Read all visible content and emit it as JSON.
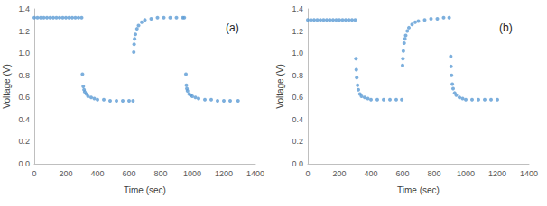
{
  "chart_data": [
    {
      "type": "scatter",
      "annotation": "(a)",
      "x_label": "Time (sec)",
      "y_label": "Voltage (V)",
      "color": "#5b9bd5",
      "marker": "circle",
      "grid": false,
      "xlim": [
        0,
        1400
      ],
      "xticks": [
        0,
        200,
        400,
        600,
        800,
        1000,
        1200,
        1400
      ],
      "ylim": [
        0,
        1.4
      ],
      "yticks": [
        {
          "value": 0,
          "label": "0.0"
        },
        0.2,
        0.4,
        0.6,
        0.8,
        {
          "value": 1,
          "label": "1.0"
        },
        1.2,
        1.4
      ],
      "x": [
        0,
        20,
        40,
        60,
        80,
        100,
        120,
        140,
        160,
        180,
        200,
        220,
        240,
        260,
        280,
        300,
        305,
        310,
        315,
        320,
        330,
        340,
        360,
        380,
        400,
        440,
        480,
        520,
        560,
        600,
        625,
        630,
        632,
        635,
        640,
        650,
        660,
        680,
        700,
        740,
        780,
        820,
        860,
        900,
        940,
        950,
        960,
        963,
        966,
        970,
        980,
        990,
        1000,
        1020,
        1040,
        1080,
        1120,
        1160,
        1200,
        1240,
        1290
      ],
      "values": [
        1.32,
        1.32,
        1.32,
        1.32,
        1.32,
        1.32,
        1.32,
        1.32,
        1.32,
        1.32,
        1.32,
        1.32,
        1.32,
        1.32,
        1.32,
        1.32,
        0.81,
        0.7,
        0.67,
        0.65,
        0.63,
        0.61,
        0.6,
        0.59,
        0.58,
        0.58,
        0.57,
        0.57,
        0.57,
        0.57,
        0.57,
        1.01,
        1.08,
        1.13,
        1.17,
        1.22,
        1.25,
        1.28,
        1.3,
        1.31,
        1.32,
        1.32,
        1.32,
        1.32,
        1.32,
        1.32,
        0.81,
        0.71,
        0.68,
        0.66,
        0.63,
        0.62,
        0.61,
        0.6,
        0.59,
        0.58,
        0.58,
        0.57,
        0.57,
        0.57,
        0.57
      ]
    },
    {
      "type": "scatter",
      "annotation": "(b)",
      "x_label": "Time (sec)",
      "y_label": "Voltage (V)",
      "color": "#5b9bd5",
      "marker": "circle",
      "grid": false,
      "xlim": [
        0,
        1400
      ],
      "xticks": [
        0,
        200,
        400,
        600,
        800,
        1000,
        1200,
        1400
      ],
      "ylim": [
        0,
        1.4
      ],
      "yticks": [
        {
          "value": 0,
          "label": "0.0"
        },
        0.2,
        0.4,
        0.6,
        0.8,
        {
          "value": 1,
          "label": "1.0"
        },
        1.2,
        1.4
      ],
      "x": [
        0,
        20,
        40,
        60,
        80,
        100,
        120,
        140,
        160,
        180,
        200,
        220,
        240,
        260,
        280,
        300,
        305,
        307,
        310,
        315,
        320,
        330,
        340,
        360,
        380,
        400,
        440,
        480,
        520,
        560,
        595,
        600,
        602,
        605,
        610,
        615,
        620,
        630,
        640,
        660,
        680,
        700,
        740,
        780,
        820,
        860,
        895,
        905,
        907,
        910,
        915,
        920,
        930,
        940,
        960,
        980,
        1000,
        1040,
        1080,
        1120,
        1160,
        1200
      ],
      "values": [
        1.3,
        1.3,
        1.3,
        1.3,
        1.3,
        1.3,
        1.3,
        1.3,
        1.3,
        1.3,
        1.3,
        1.3,
        1.3,
        1.3,
        1.3,
        1.3,
        0.95,
        0.85,
        0.78,
        0.71,
        0.67,
        0.63,
        0.61,
        0.6,
        0.59,
        0.58,
        0.58,
        0.58,
        0.58,
        0.58,
        0.58,
        0.89,
        0.95,
        1.02,
        1.09,
        1.13,
        1.16,
        1.2,
        1.23,
        1.26,
        1.28,
        1.29,
        1.3,
        1.31,
        1.31,
        1.32,
        1.32,
        0.97,
        0.88,
        0.8,
        0.72,
        0.68,
        0.64,
        0.62,
        0.6,
        0.59,
        0.58,
        0.58,
        0.58,
        0.58,
        0.58,
        0.58
      ]
    }
  ]
}
